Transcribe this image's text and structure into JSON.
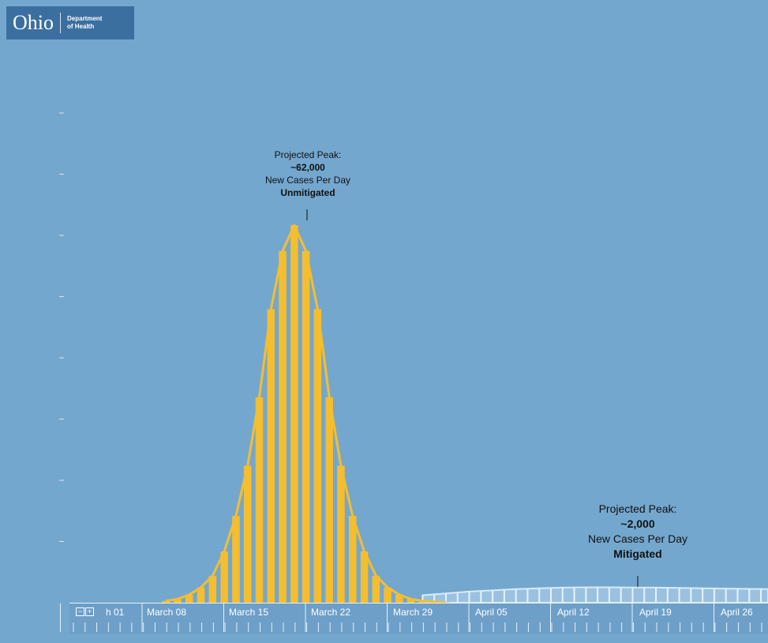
{
  "logo": {
    "word": "Ohio",
    "line1": "Department",
    "line2": "of Health"
  },
  "annotations": {
    "unmitigated": {
      "line1": "Projected Peak:",
      "line2": "~62,000",
      "line3": "New Cases Per Day",
      "line4": "Unmitigated"
    },
    "mitigated": {
      "line1": "Projected Peak:",
      "line2": "~2,000",
      "line3": "New Cases Per Day",
      "line4": "Mitigated"
    }
  },
  "controls": {
    "collapse": "−",
    "expand": "+"
  },
  "colors": {
    "background": "#74a7ce",
    "unmitigated": "#f5be2e",
    "mitigated": "#b9d8ee"
  },
  "chart_data": {
    "type": "bar",
    "title": "",
    "xlabel": "",
    "ylabel": "",
    "x_tick_labels": [
      "h 01",
      "March 08",
      "March 15",
      "March 22",
      "March 29",
      "April 05",
      "April 12",
      "April 19",
      "April 26"
    ],
    "ylim": [
      0,
      62000
    ],
    "series": [
      {
        "name": "Unmitigated",
        "x": [
          "2020-03-09",
          "2020-03-10",
          "2020-03-11",
          "2020-03-12",
          "2020-03-13",
          "2020-03-14",
          "2020-03-15",
          "2020-03-16",
          "2020-03-17",
          "2020-03-18",
          "2020-03-19",
          "2020-03-20",
          "2020-03-21",
          "2020-03-22",
          "2020-03-23",
          "2020-03-24",
          "2020-03-25",
          "2020-03-26",
          "2020-03-27",
          "2020-03-28",
          "2020-03-29",
          "2020-03-30",
          "2020-03-31",
          "2020-04-01",
          "2020-04-02"
        ],
        "values": [
          300,
          600,
          1300,
          2500,
          4400,
          8400,
          14200,
          22400,
          33600,
          48000,
          57500,
          61700,
          57500,
          48000,
          33600,
          22400,
          14200,
          8400,
          4400,
          2500,
          1300,
          600,
          300,
          150,
          60
        ]
      },
      {
        "name": "Mitigated",
        "x": [
          "2020-03-31",
          "2020-04-02",
          "2020-04-04",
          "2020-04-06",
          "2020-04-08",
          "2020-04-10",
          "2020-04-12",
          "2020-04-14",
          "2020-04-16",
          "2020-04-18",
          "2020-04-20",
          "2020-04-22",
          "2020-04-24",
          "2020-04-26",
          "2020-04-28",
          "2020-04-30"
        ],
        "values": [
          700,
          1000,
          1300,
          1500,
          1700,
          1850,
          1950,
          2000,
          2000,
          1980,
          1950,
          1900,
          1850,
          1800,
          1750,
          1700
        ]
      }
    ],
    "peaks": [
      {
        "series": "Unmitigated",
        "value": 62000
      },
      {
        "series": "Mitigated",
        "value": 2000
      }
    ]
  }
}
